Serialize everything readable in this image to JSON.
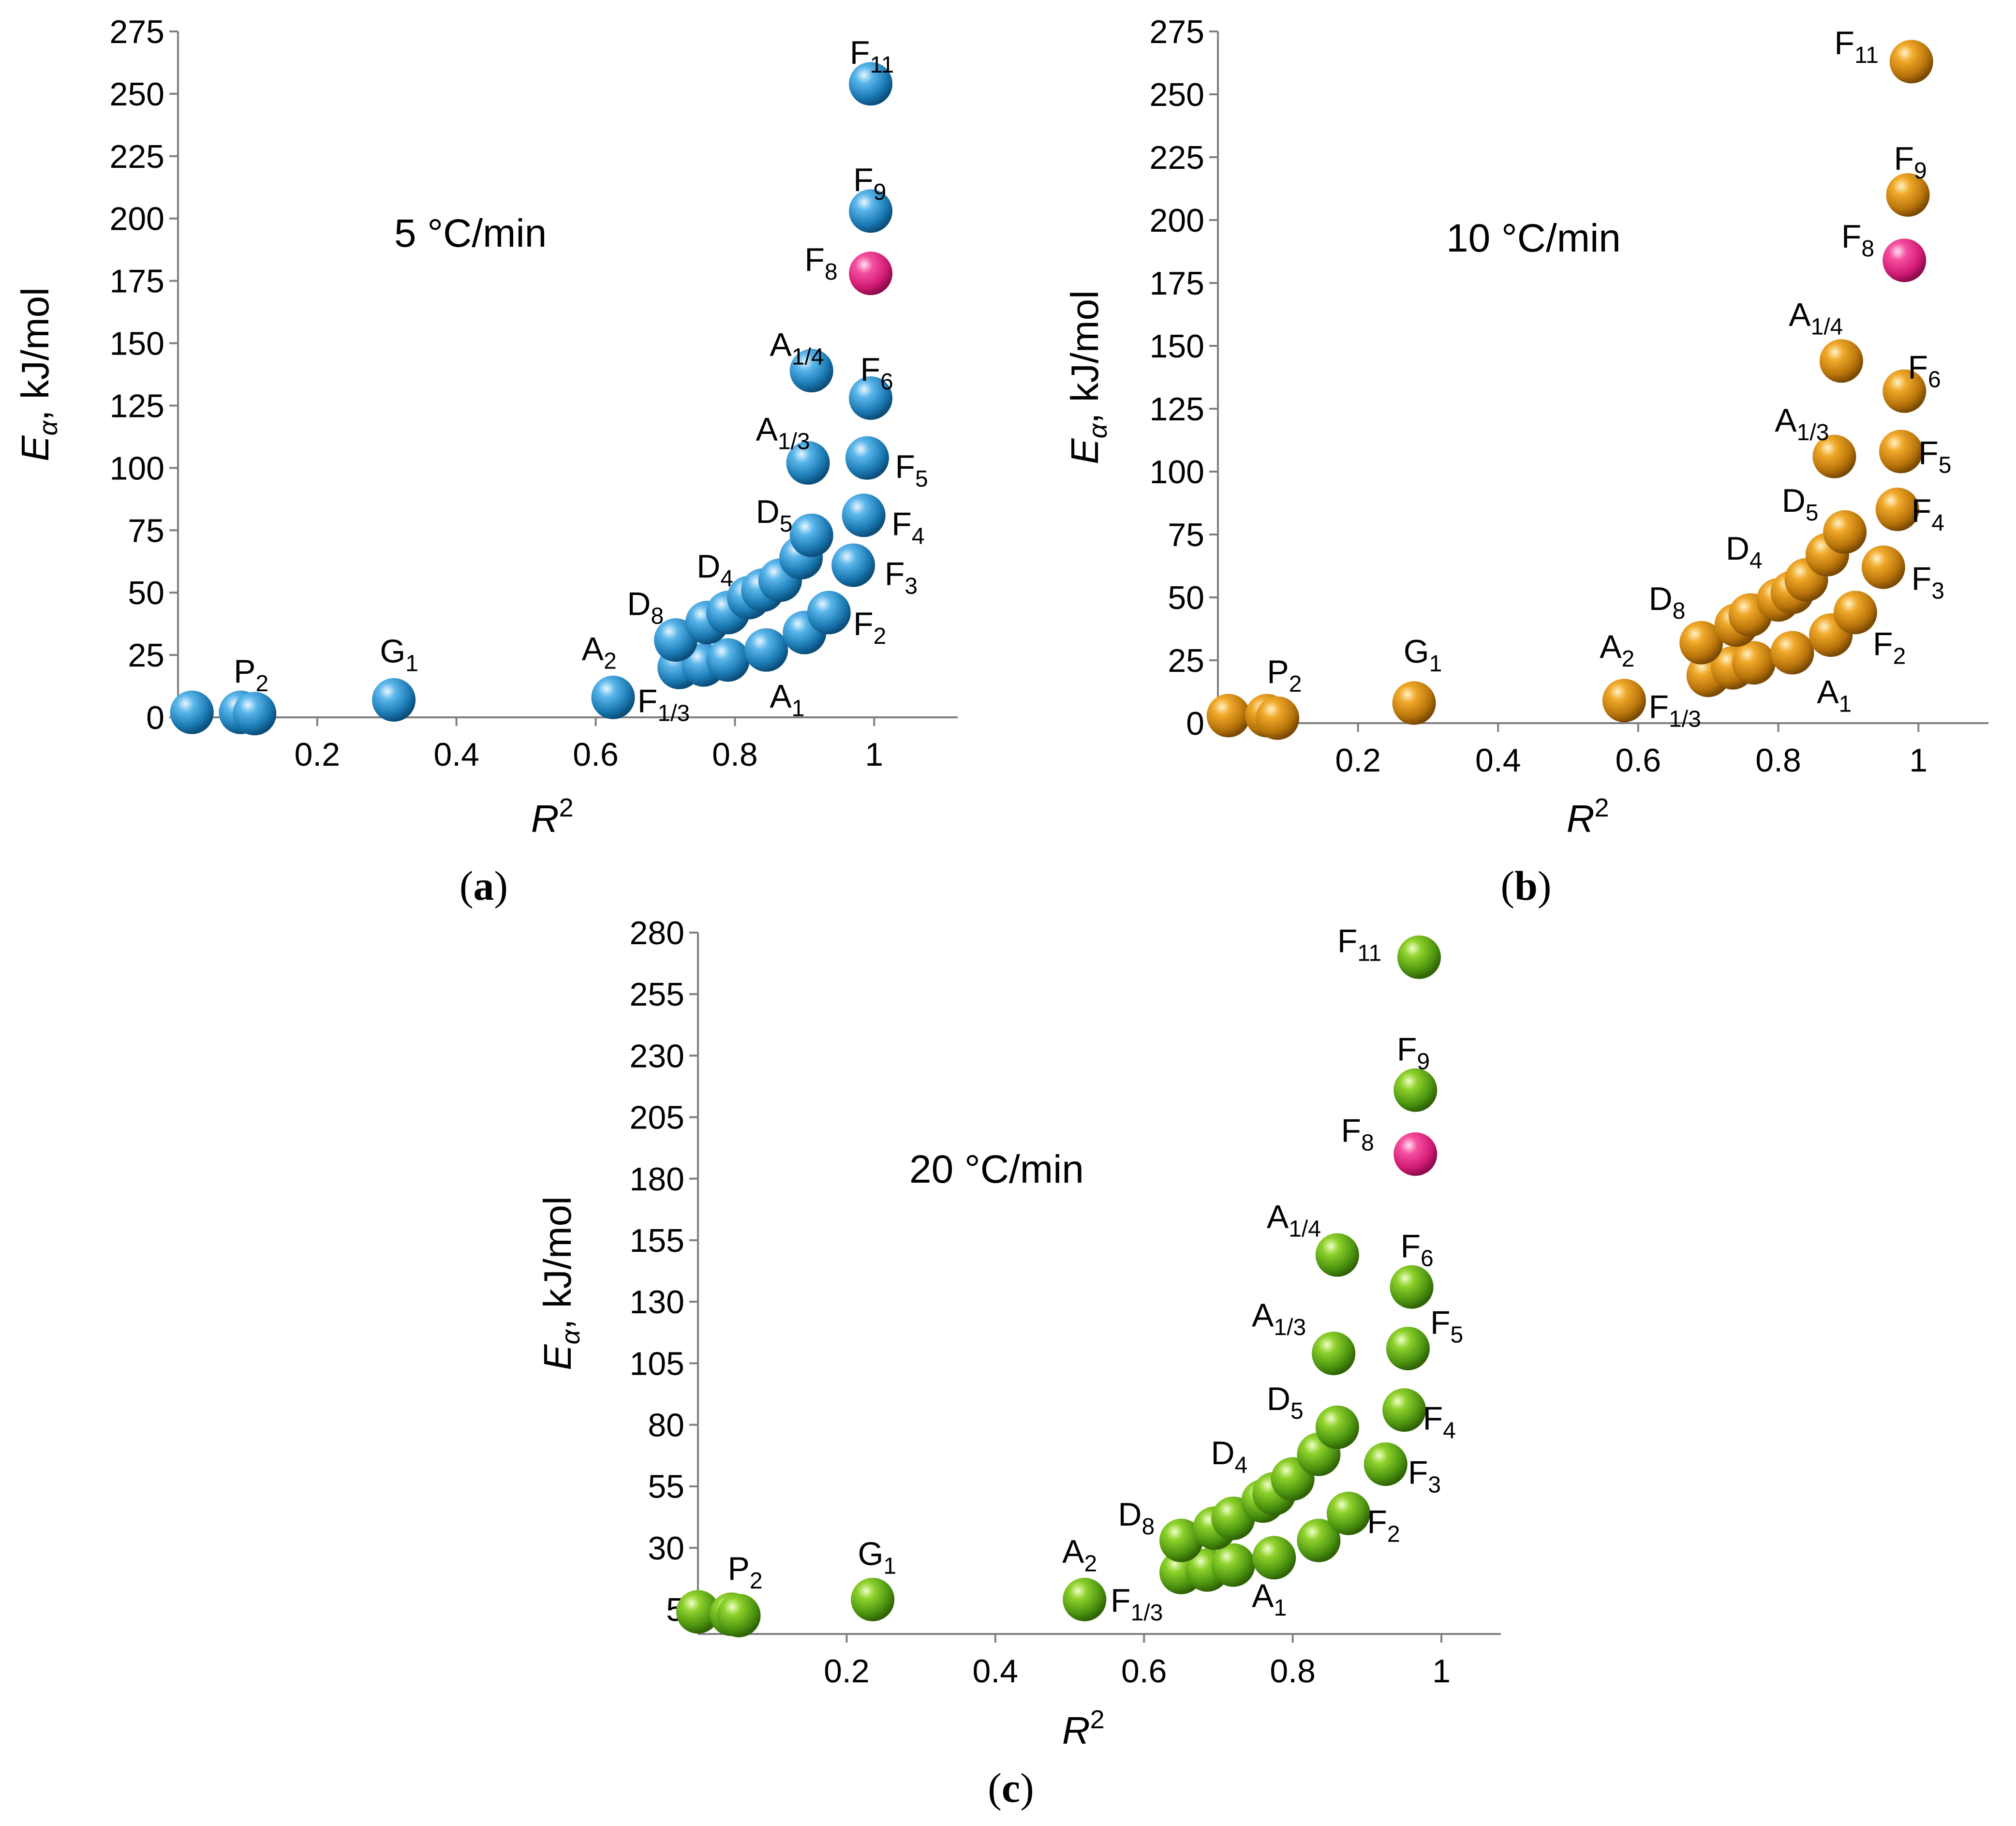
{
  "colors": {
    "panel_a": "#2e94cf",
    "panel_b": "#d98c0a",
    "panel_c": "#6cb51a",
    "highlight": "#ec2d8c"
  },
  "chart_data": [
    {
      "type": "scatter",
      "id": "a",
      "caption": "a",
      "annotation": "5 °C/min",
      "xlabel": "R",
      "xlabel_sup": "2",
      "ylabel": "E",
      "ylabel_sub": "α",
      "ylabel_units": ", kJ/mol",
      "xlim": [
        0,
        1.12
      ],
      "ylim": [
        0,
        275
      ],
      "xticks": [
        0.2,
        0.4,
        0.6,
        0.8,
        1
      ],
      "xtick_labels": [
        "0.2",
        "0.4",
        "0.6",
        "0.8",
        "1"
      ],
      "yticks": [
        0,
        25,
        50,
        75,
        100,
        125,
        150,
        175,
        200,
        225,
        250,
        275
      ],
      "ytick_labels": [
        "0",
        "25",
        "50",
        "75",
        "100",
        "125",
        "150",
        "175",
        "200",
        "225",
        "250",
        "275"
      ],
      "points": [
        {
          "x": 0.02,
          "y": 2
        },
        {
          "x": 0.09,
          "y": 2
        },
        {
          "x": 0.11,
          "y": 1.5
        },
        {
          "x": 0.31,
          "y": 7
        },
        {
          "x": 0.625,
          "y": 8
        },
        {
          "x": 0.72,
          "y": 20
        },
        {
          "x": 0.755,
          "y": 21
        },
        {
          "x": 0.79,
          "y": 23
        },
        {
          "x": 0.845,
          "y": 27
        },
        {
          "x": 0.9,
          "y": 34
        },
        {
          "x": 0.935,
          "y": 42
        },
        {
          "x": 0.97,
          "y": 61
        },
        {
          "x": 0.985,
          "y": 81
        },
        {
          "x": 0.99,
          "y": 104
        },
        {
          "x": 0.995,
          "y": 128
        },
        {
          "x": 0.715,
          "y": 31
        },
        {
          "x": 0.76,
          "y": 38
        },
        {
          "x": 0.79,
          "y": 42
        },
        {
          "x": 0.82,
          "y": 48
        },
        {
          "x": 0.84,
          "y": 51
        },
        {
          "x": 0.865,
          "y": 55
        },
        {
          "x": 0.895,
          "y": 64
        },
        {
          "x": 0.91,
          "y": 73
        },
        {
          "x": 0.905,
          "y": 102
        },
        {
          "x": 0.91,
          "y": 139
        },
        {
          "x": 0.995,
          "y": 203
        },
        {
          "x": 0.995,
          "y": 254
        },
        {
          "x": 0.995,
          "y": 178,
          "highlight": true
        }
      ],
      "labels": [
        {
          "main": "P",
          "sub": "2",
          "x": 0.08,
          "y": 14
        },
        {
          "main": "G",
          "sub": "1",
          "x": 0.29,
          "y": 22
        },
        {
          "main": "A",
          "sub": "2",
          "x": 0.58,
          "y": 23
        },
        {
          "main": "F",
          "sub": "1/3",
          "x": 0.66,
          "y": 2
        },
        {
          "main": "A",
          "sub": "1",
          "x": 0.85,
          "y": 4
        },
        {
          "main": "F",
          "sub": "2",
          "x": 0.97,
          "y": 33
        },
        {
          "main": "F",
          "sub": "3",
          "x": 1.015,
          "y": 53
        },
        {
          "main": "F",
          "sub": "4",
          "x": 1.025,
          "y": 73
        },
        {
          "main": "F",
          "sub": "5",
          "x": 1.03,
          "y": 96
        },
        {
          "main": "F",
          "sub": "6",
          "x": 0.98,
          "y": 135
        },
        {
          "main": "A",
          "sub": "1/3",
          "x": 0.83,
          "y": 111
        },
        {
          "main": "A",
          "sub": "1/4",
          "x": 0.85,
          "y": 145
        },
        {
          "main": "D",
          "sub": "5",
          "x": 0.83,
          "y": 78
        },
        {
          "main": "D",
          "sub": "4",
          "x": 0.745,
          "y": 56
        },
        {
          "main": "D",
          "sub": "8",
          "x": 0.645,
          "y": 41
        },
        {
          "main": "F",
          "sub": "8",
          "x": 0.9,
          "y": 179
        },
        {
          "main": "F",
          "sub": "9",
          "x": 0.97,
          "y": 211
        },
        {
          "main": "F",
          "sub": "11",
          "x": 0.965,
          "y": 262
        }
      ]
    },
    {
      "type": "scatter",
      "id": "b",
      "caption": "b",
      "annotation": "10 °C/min",
      "xlabel": "R",
      "xlabel_sup": "2",
      "ylabel": "E",
      "ylabel_sub": "α",
      "ylabel_units": ", kJ/mol",
      "xlim": [
        0,
        1.1
      ],
      "ylim": [
        0,
        275
      ],
      "xticks": [
        0.2,
        0.4,
        0.6,
        0.8,
        1
      ],
      "xtick_labels": [
        "0.2",
        "0.4",
        "0.6",
        "0.8",
        "1"
      ],
      "yticks": [
        0,
        25,
        50,
        75,
        100,
        125,
        150,
        175,
        200,
        225,
        250,
        275
      ],
      "ytick_labels": [
        "0",
        "25",
        "50",
        "75",
        "100",
        "125",
        "150",
        "175",
        "200",
        "225",
        "250",
        "275"
      ],
      "points": [
        {
          "x": 0.015,
          "y": 3
        },
        {
          "x": 0.07,
          "y": 3
        },
        {
          "x": 0.085,
          "y": 2
        },
        {
          "x": 0.28,
          "y": 8
        },
        {
          "x": 0.58,
          "y": 9
        },
        {
          "x": 0.7,
          "y": 19
        },
        {
          "x": 0.735,
          "y": 22
        },
        {
          "x": 0.765,
          "y": 24
        },
        {
          "x": 0.82,
          "y": 28
        },
        {
          "x": 0.875,
          "y": 35
        },
        {
          "x": 0.91,
          "y": 44
        },
        {
          "x": 0.95,
          "y": 62
        },
        {
          "x": 0.97,
          "y": 85
        },
        {
          "x": 0.975,
          "y": 108
        },
        {
          "x": 0.98,
          "y": 132
        },
        {
          "x": 0.69,
          "y": 32
        },
        {
          "x": 0.74,
          "y": 39
        },
        {
          "x": 0.76,
          "y": 43
        },
        {
          "x": 0.8,
          "y": 49
        },
        {
          "x": 0.82,
          "y": 52
        },
        {
          "x": 0.84,
          "y": 57
        },
        {
          "x": 0.87,
          "y": 67
        },
        {
          "x": 0.895,
          "y": 76
        },
        {
          "x": 0.88,
          "y": 106
        },
        {
          "x": 0.89,
          "y": 144
        },
        {
          "x": 0.985,
          "y": 210
        },
        {
          "x": 0.99,
          "y": 263
        },
        {
          "x": 0.98,
          "y": 184,
          "highlight": true
        }
      ],
      "labels": [
        {
          "main": "P",
          "sub": "2",
          "x": 0.07,
          "y": 16
        },
        {
          "main": "G",
          "sub": "1",
          "x": 0.265,
          "y": 24
        },
        {
          "main": "A",
          "sub": "2",
          "x": 0.545,
          "y": 26
        },
        {
          "main": "F",
          "sub": "1/3",
          "x": 0.615,
          "y": 2
        },
        {
          "main": "A",
          "sub": "1",
          "x": 0.855,
          "y": 8
        },
        {
          "main": "F",
          "sub": "2",
          "x": 0.935,
          "y": 27
        },
        {
          "main": "F",
          "sub": "3",
          "x": 0.99,
          "y": 53
        },
        {
          "main": "F",
          "sub": "4",
          "x": 0.99,
          "y": 80
        },
        {
          "main": "F",
          "sub": "5",
          "x": 1.0,
          "y": 103
        },
        {
          "main": "F",
          "sub": "6",
          "x": 0.985,
          "y": 137
        },
        {
          "main": "A",
          "sub": "1/3",
          "x": 0.795,
          "y": 116
        },
        {
          "main": "A",
          "sub": "1/4",
          "x": 0.815,
          "y": 158
        },
        {
          "main": "D",
          "sub": "5",
          "x": 0.805,
          "y": 84
        },
        {
          "main": "D",
          "sub": "4",
          "x": 0.725,
          "y": 65
        },
        {
          "main": "D",
          "sub": "8",
          "x": 0.615,
          "y": 45
        },
        {
          "main": "F",
          "sub": "8",
          "x": 0.89,
          "y": 189
        },
        {
          "main": "F",
          "sub": "9",
          "x": 0.965,
          "y": 220
        },
        {
          "main": "F",
          "sub": "11",
          "x": 0.88,
          "y": 266
        }
      ]
    },
    {
      "type": "scatter",
      "id": "c",
      "caption": "c",
      "annotation": "20 °C/min",
      "xlabel": "R",
      "xlabel_sup": "2",
      "ylabel": "E",
      "ylabel_sub": "α",
      "ylabel_units": ", kJ/mol",
      "xlim": [
        0,
        1.08
      ],
      "ylim": [
        -5,
        280
      ],
      "xticks": [
        0.2,
        0.4,
        0.6,
        0.8,
        1
      ],
      "xtick_labels": [
        "0.2",
        "0.4",
        "0.6",
        "0.8",
        "1"
      ],
      "yticks": [
        5,
        30,
        55,
        80,
        105,
        130,
        155,
        180,
        205,
        230,
        255,
        280
      ],
      "ytick_labels": [
        "5",
        "30",
        "55",
        "80",
        "105",
        "130",
        "155",
        "180",
        "205",
        "230",
        "255",
        "280"
      ],
      "points": [
        {
          "x": 0.0,
          "y": 4
        },
        {
          "x": 0.045,
          "y": 3
        },
        {
          "x": 0.055,
          "y": 2.5
        },
        {
          "x": 0.235,
          "y": 9
        },
        {
          "x": 0.52,
          "y": 9
        },
        {
          "x": 0.65,
          "y": 20
        },
        {
          "x": 0.685,
          "y": 21
        },
        {
          "x": 0.72,
          "y": 23
        },
        {
          "x": 0.775,
          "y": 26
        },
        {
          "x": 0.835,
          "y": 33
        },
        {
          "x": 0.875,
          "y": 44
        },
        {
          "x": 0.925,
          "y": 64
        },
        {
          "x": 0.95,
          "y": 86
        },
        {
          "x": 0.955,
          "y": 111
        },
        {
          "x": 0.96,
          "y": 136
        },
        {
          "x": 0.65,
          "y": 33
        },
        {
          "x": 0.695,
          "y": 38
        },
        {
          "x": 0.72,
          "y": 42
        },
        {
          "x": 0.76,
          "y": 49
        },
        {
          "x": 0.775,
          "y": 52
        },
        {
          "x": 0.8,
          "y": 58
        },
        {
          "x": 0.835,
          "y": 68
        },
        {
          "x": 0.86,
          "y": 79
        },
        {
          "x": 0.855,
          "y": 109
        },
        {
          "x": 0.86,
          "y": 149
        },
        {
          "x": 0.965,
          "y": 216
        },
        {
          "x": 0.97,
          "y": 270
        },
        {
          "x": 0.965,
          "y": 190,
          "highlight": true
        }
      ],
      "labels": [
        {
          "main": "P",
          "sub": "2",
          "x": 0.04,
          "y": 17
        },
        {
          "main": "G",
          "sub": "1",
          "x": 0.215,
          "y": 23
        },
        {
          "main": "A",
          "sub": "2",
          "x": 0.49,
          "y": 24
        },
        {
          "main": "F",
          "sub": "1/3",
          "x": 0.555,
          "y": 4
        },
        {
          "main": "A",
          "sub": "1",
          "x": 0.745,
          "y": 6
        },
        {
          "main": "F",
          "sub": "2",
          "x": 0.9,
          "y": 36
        },
        {
          "main": "F",
          "sub": "3",
          "x": 0.955,
          "y": 56
        },
        {
          "main": "F",
          "sub": "4",
          "x": 0.975,
          "y": 78
        },
        {
          "main": "F",
          "sub": "5",
          "x": 0.985,
          "y": 117
        },
        {
          "main": "F",
          "sub": "6",
          "x": 0.945,
          "y": 148
        },
        {
          "main": "A",
          "sub": "1/3",
          "x": 0.745,
          "y": 120
        },
        {
          "main": "A",
          "sub": "1/4",
          "x": 0.765,
          "y": 160
        },
        {
          "main": "D",
          "sub": "5",
          "x": 0.765,
          "y": 86
        },
        {
          "main": "D",
          "sub": "4",
          "x": 0.69,
          "y": 64
        },
        {
          "main": "D",
          "sub": "8",
          "x": 0.565,
          "y": 39
        },
        {
          "main": "F",
          "sub": "8",
          "x": 0.865,
          "y": 195
        },
        {
          "main": "F",
          "sub": "9",
          "x": 0.94,
          "y": 228
        },
        {
          "main": "F",
          "sub": "11",
          "x": 0.86,
          "y": 272
        }
      ]
    }
  ]
}
